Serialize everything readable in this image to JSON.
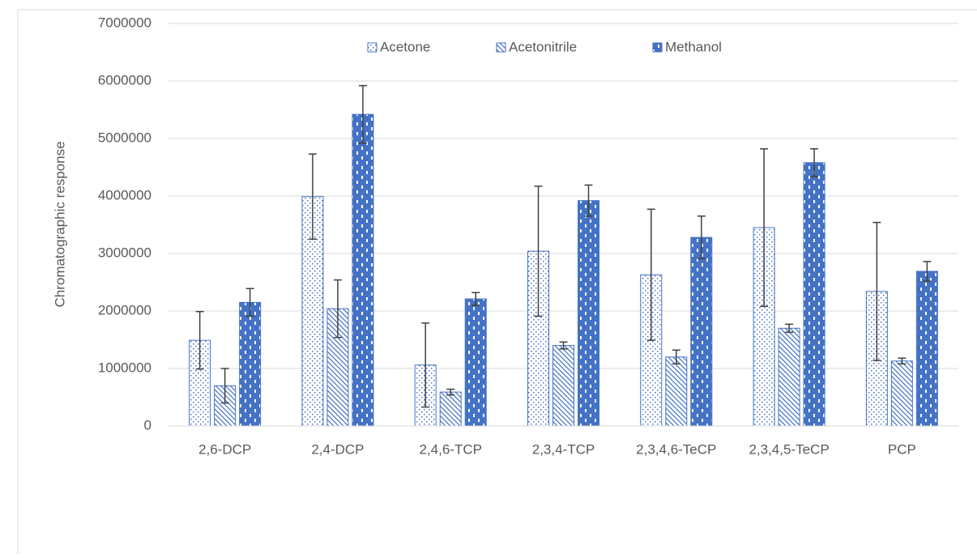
{
  "chart_data": {
    "type": "bar",
    "y_label": "Chromatographic response",
    "categories": [
      "2,6-DCP",
      "2,4-DCP",
      "2,4,6-TCP",
      "2,3,4-TCP",
      "2,3,4,6-TeCP",
      "2,3,4,5-TeCP",
      "PCP"
    ],
    "series": [
      {
        "name": "Acetone",
        "color": "#4472c4",
        "pattern": "dots",
        "values": [
          1490000,
          3990000,
          1060000,
          3040000,
          2630000,
          3450000,
          2340000
        ],
        "errors": [
          500000,
          740000,
          730000,
          1130000,
          1140000,
          1370000,
          1200000
        ]
      },
      {
        "name": "Acetonitrile",
        "color": "#4472c4",
        "pattern": "hatch",
        "values": [
          700000,
          2040000,
          590000,
          1400000,
          1200000,
          1700000,
          1130000
        ],
        "errors": [
          300000,
          500000,
          50000,
          60000,
          120000,
          70000,
          50000
        ]
      },
      {
        "name": "Methanol",
        "color": "#4472c4",
        "pattern": "dashes",
        "values": [
          2150000,
          5420000,
          2210000,
          3920000,
          3280000,
          4580000,
          2690000
        ],
        "errors": [
          240000,
          500000,
          110000,
          270000,
          370000,
          240000,
          170000
        ]
      }
    ],
    "ylim": [
      0,
      7000000
    ],
    "yticks": [
      0,
      1000000,
      2000000,
      3000000,
      4000000,
      5000000,
      6000000,
      7000000
    ],
    "grid": true,
    "legend": "top"
  }
}
